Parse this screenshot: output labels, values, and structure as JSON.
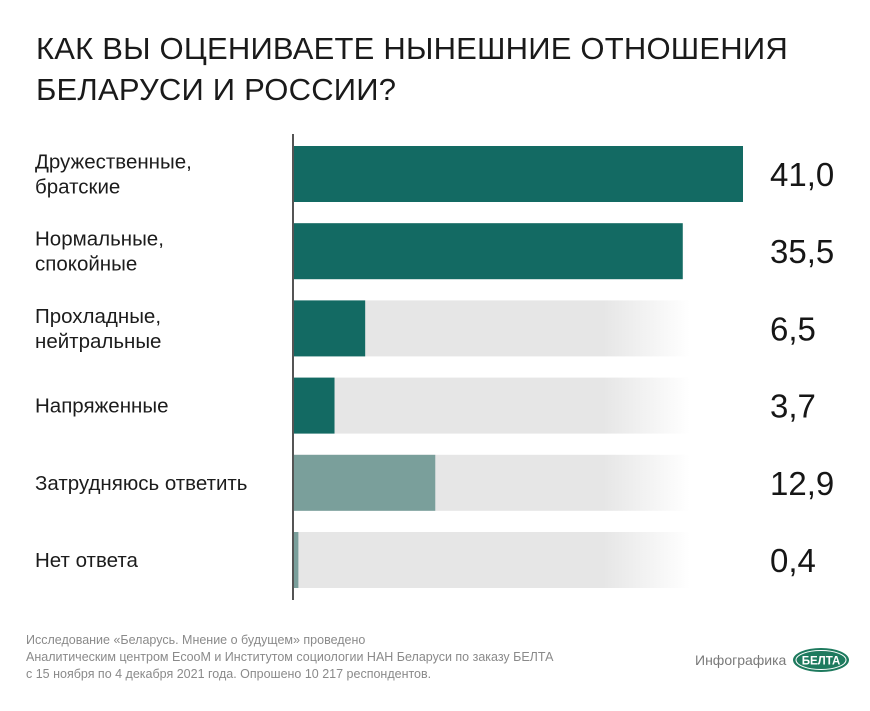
{
  "title": {
    "line1": "КАК ВЫ ОЦЕНИВАЕТЕ НЫНЕШНИЕ ОТНОШЕНИЯ",
    "line2": "БЕЛАРУСИ И РОССИИ?"
  },
  "colors": {
    "dark_teal": "#136a63",
    "light_teal": "#7a9f9b",
    "track": "#e6e6e6",
    "axis": "#2a2a2a",
    "logo_green": "#1e7a5e"
  },
  "chart_data": {
    "type": "bar",
    "orientation": "horizontal",
    "title": "КАК ВЫ ОЦЕНИВАЕТЕ НЫНЕШНИЕ ОТНОШЕНИЯ БЕЛАРУСИ И РОССИИ?",
    "xlabel": "",
    "ylabel": "",
    "xlim": [
      0,
      41
    ],
    "grid": false,
    "legend": "none",
    "categories": [
      [
        "Дружественные,",
        "братские"
      ],
      [
        "Нормальные,",
        "спокойные"
      ],
      [
        "Прохладные,",
        "нейтральные"
      ],
      [
        "Напряженные"
      ],
      [
        "Затрудняюсь ответить"
      ],
      [
        "Нет ответа"
      ]
    ],
    "values": [
      41.0,
      35.5,
      6.5,
      3.7,
      12.9,
      0.4
    ],
    "value_labels": [
      "41,0",
      "35,5",
      "6,5",
      "3,7",
      "12,9",
      "0,4"
    ],
    "bar_style": [
      "dark",
      "dark",
      "dark",
      "dark",
      "light",
      "light"
    ]
  },
  "footer": {
    "line1": "Исследование «Беларусь. Мнение о будущем» проведено",
    "line2": "Аналитическим центром EcooM и Институтом социологии НАН Беларуси по заказу БЕЛТА",
    "line3": "с 15 ноября по 4 декабря 2021 года. Опрошено 10 217 респондентов."
  },
  "credit": {
    "label": "Инфографика",
    "logo_text": "БЕЛТА"
  }
}
